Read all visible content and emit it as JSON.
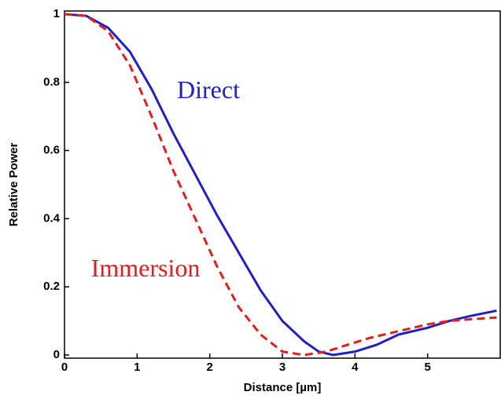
{
  "chart_data": {
    "type": "line",
    "xlabel": "Distance [µm]",
    "ylabel": "Relative Power",
    "xlim": [
      0,
      6
    ],
    "ylim": [
      0,
      1
    ],
    "xticks": [
      0,
      1,
      2,
      3,
      4,
      5
    ],
    "yticks": [
      0,
      0.2,
      0.4,
      0.6,
      0.8,
      1
    ],
    "series": [
      {
        "name": "Direct",
        "color": "#1f1fcc",
        "dash": false,
        "x": [
          0,
          0.3,
          0.6,
          0.9,
          1.2,
          1.5,
          1.8,
          2.1,
          2.4,
          2.7,
          3.0,
          3.3,
          3.5,
          3.7,
          4.0,
          4.3,
          4.6,
          5.0,
          5.3,
          5.6,
          5.95
        ],
        "values": [
          1.0,
          0.995,
          0.96,
          0.89,
          0.78,
          0.65,
          0.53,
          0.41,
          0.3,
          0.19,
          0.1,
          0.04,
          0.01,
          0.0,
          0.01,
          0.03,
          0.06,
          0.08,
          0.1,
          0.115,
          0.13
        ]
      },
      {
        "name": "Immersion",
        "color": "#e81c1c",
        "dash": true,
        "x": [
          0,
          0.3,
          0.6,
          0.9,
          1.2,
          1.5,
          1.8,
          2.1,
          2.4,
          2.7,
          3.0,
          3.3,
          3.6,
          3.9,
          4.2,
          4.6,
          5.0,
          5.3,
          5.6,
          5.95
        ],
        "values": [
          1.0,
          0.995,
          0.95,
          0.85,
          0.7,
          0.54,
          0.4,
          0.26,
          0.14,
          0.06,
          0.01,
          0.0,
          0.01,
          0.03,
          0.05,
          0.07,
          0.09,
          0.1,
          0.105,
          0.11
        ]
      }
    ]
  }
}
